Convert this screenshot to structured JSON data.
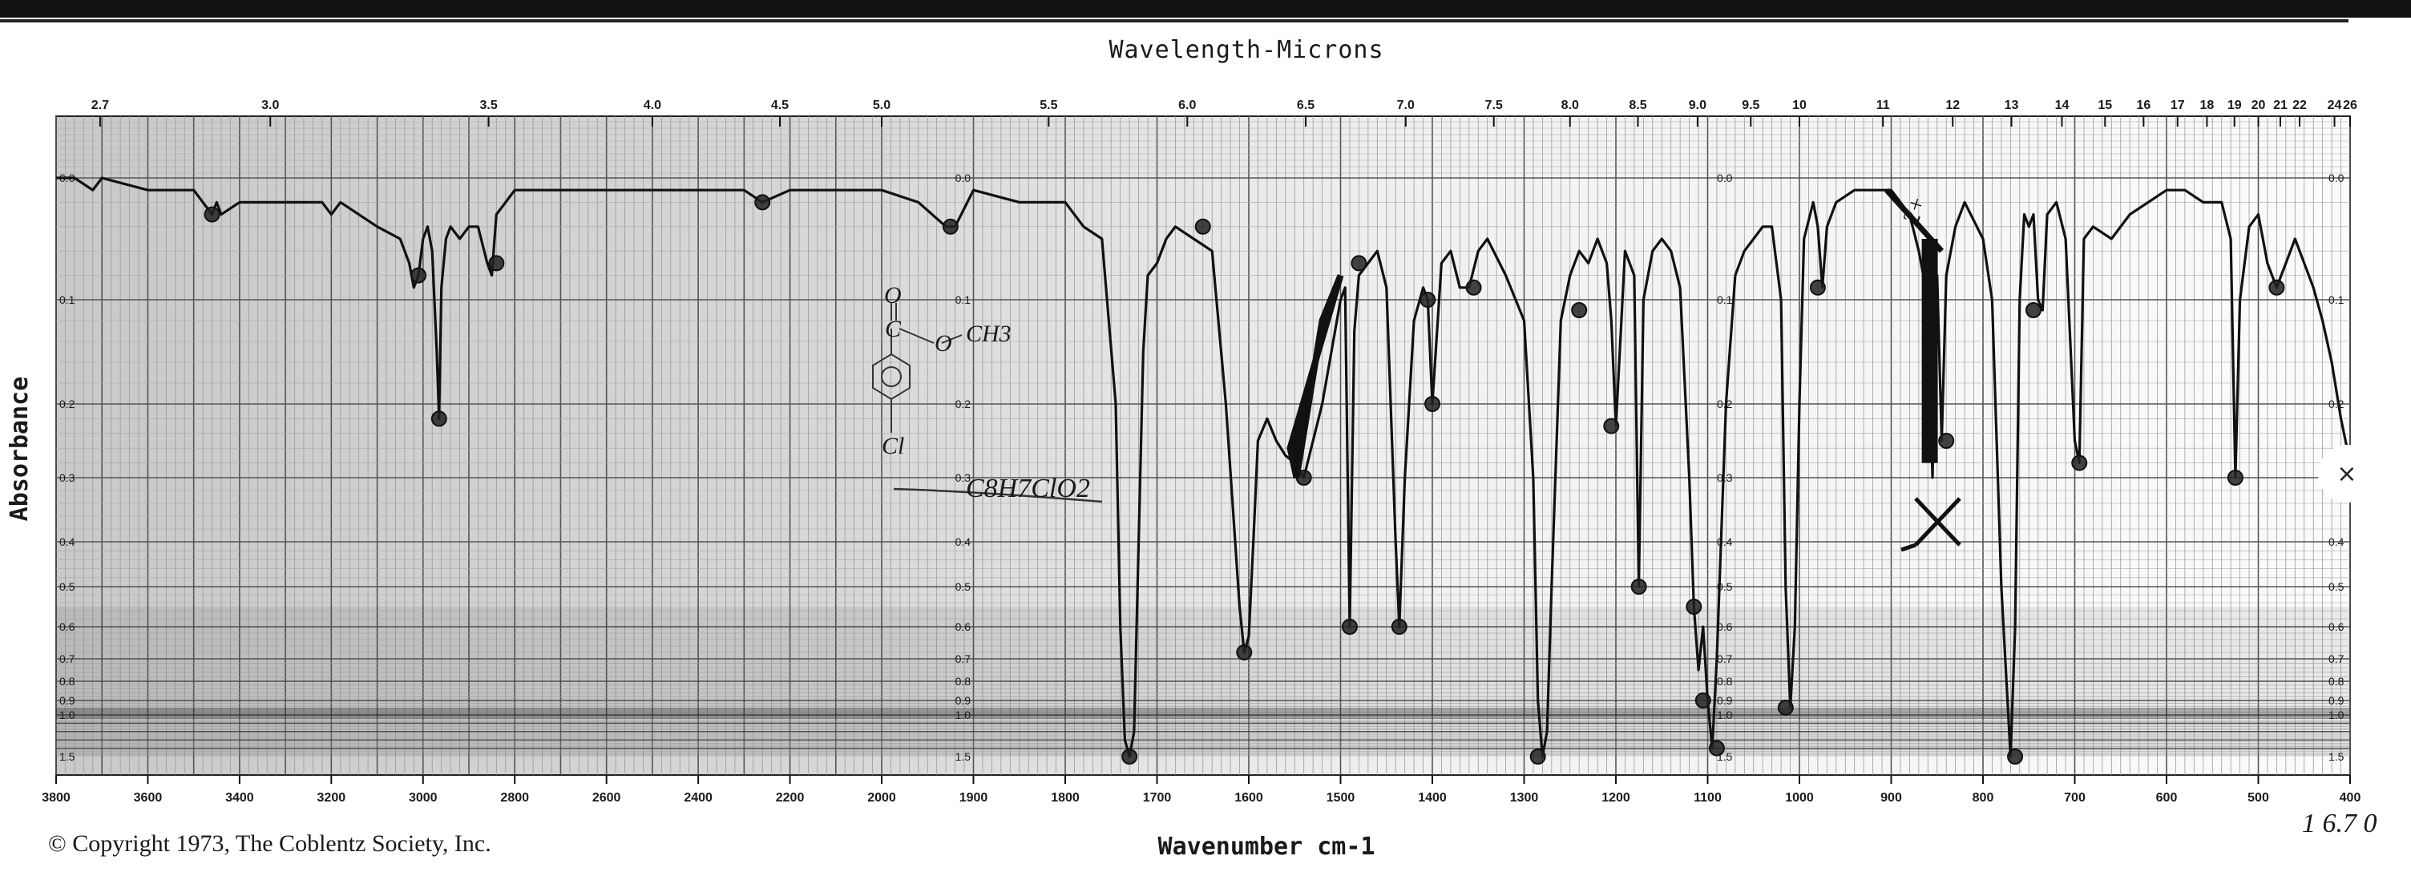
{
  "chart_data": {
    "type": "line",
    "title": "Wavelength-Microns",
    "xlabel": "Wavenumber cm-1",
    "ylabel": "Absorbance",
    "xlim": [
      3800,
      400
    ],
    "ylim": [
      0.0,
      1.5
    ],
    "x_ticks": [
      "3800",
      "3600",
      "3400",
      "3200",
      "3000",
      "2800",
      "2600",
      "2400",
      "2200",
      "2000",
      "1900",
      "1800",
      "1700",
      "1600",
      "1500",
      "1400",
      "1300",
      "1200",
      "1100",
      "1000",
      "900",
      "800",
      "700",
      "600",
      "500",
      "400"
    ],
    "top_ticks": [
      {
        "label": "2.7",
        "wn": 3704
      },
      {
        "label": "3.0",
        "wn": 3333
      },
      {
        "label": "3.5",
        "wn": 2857
      },
      {
        "label": "4.0",
        "wn": 2500
      },
      {
        "label": "4.5",
        "wn": 2222
      },
      {
        "label": "5.0",
        "wn": 2000
      },
      {
        "label": "5.5",
        "wn": 1818
      },
      {
        "label": "6.0",
        "wn": 1667
      },
      {
        "label": "6.5",
        "wn": 1538
      },
      {
        "label": "7.0",
        "wn": 1429
      },
      {
        "label": "7.5",
        "wn": 1333
      },
      {
        "label": "8.0",
        "wn": 1250
      },
      {
        "label": "8.5",
        "wn": 1176
      },
      {
        "label": "9.0",
        "wn": 1111
      },
      {
        "label": "9.5",
        "wn": 1053
      },
      {
        "label": "10",
        "wn": 1000
      },
      {
        "label": "11",
        "wn": 909
      },
      {
        "label": "12",
        "wn": 833
      },
      {
        "label": "13",
        "wn": 769
      },
      {
        "label": "14",
        "wn": 714
      },
      {
        "label": "15",
        "wn": 667
      },
      {
        "label": "16",
        "wn": 625
      },
      {
        "label": "17",
        "wn": 588
      },
      {
        "label": "18",
        "wn": 556
      },
      {
        "label": "19",
        "wn": 526
      },
      {
        "label": "20",
        "wn": 500
      },
      {
        "label": "21",
        "wn": 476
      },
      {
        "label": "22",
        "wn": 455
      },
      {
        "label": "24",
        "wn": 417
      },
      {
        "label": "26",
        "wn": 400
      }
    ],
    "y_ticks": [
      "0.0",
      "0.1",
      "0.2",
      "0.3",
      "0.4",
      "0.5",
      "0.6",
      "0.7",
      "0.8",
      "0.9",
      "1.0",
      "1.5"
    ],
    "series": [
      {
        "x": [
          3800,
          3760,
          3720,
          3700,
          3600,
          3500,
          3460,
          3450,
          3440,
          3400,
          3300,
          3220,
          3200,
          3180,
          3100,
          3050,
          3030,
          3020,
          3010,
          3000,
          2990,
          2980,
          2970,
          2965,
          2960,
          2950,
          2940,
          2920,
          2900,
          2880,
          2860,
          2850,
          2840,
          2820,
          2800,
          2600,
          2400,
          2300,
          2260,
          2200,
          2100,
          2000,
          1960,
          1930,
          1920,
          1900,
          1850,
          1800,
          1780,
          1760,
          1745,
          1740,
          1735,
          1730,
          1725,
          1720,
          1715,
          1710,
          1700,
          1690,
          1680,
          1660,
          1640,
          1625,
          1610,
          1605,
          1600,
          1595,
          1590,
          1580,
          1570,
          1560,
          1550,
          1540,
          1520,
          1500,
          1495,
          1490,
          1485,
          1480,
          1470,
          1460,
          1450,
          1440,
          1436,
          1430,
          1420,
          1410,
          1405,
          1400,
          1390,
          1380,
          1370,
          1360,
          1350,
          1340,
          1320,
          1300,
          1290,
          1285,
          1280,
          1275,
          1270,
          1260,
          1250,
          1240,
          1230,
          1220,
          1210,
          1205,
          1200,
          1190,
          1180,
          1175,
          1170,
          1160,
          1150,
          1140,
          1130,
          1120,
          1115,
          1110,
          1105,
          1100,
          1095,
          1090,
          1080,
          1070,
          1060,
          1050,
          1040,
          1030,
          1020,
          1015,
          1010,
          1005,
          1000,
          995,
          985,
          980,
          975,
          970,
          960,
          940,
          920,
          900,
          880,
          870,
          860,
          855,
          850,
          845,
          840,
          830,
          820,
          800,
          790,
          780,
          770,
          765,
          760,
          755,
          750,
          745,
          740,
          735,
          730,
          720,
          710,
          700,
          695,
          690,
          680,
          660,
          640,
          620,
          600,
          580,
          560,
          540,
          530,
          525,
          520,
          510,
          500,
          490,
          480,
          475,
          470,
          460,
          450,
          440,
          430,
          420,
          410,
          400
        ],
        "y": [
          0.0,
          0.0,
          0.01,
          0.0,
          0.01,
          0.01,
          0.03,
          0.02,
          0.03,
          0.02,
          0.02,
          0.02,
          0.03,
          0.02,
          0.04,
          0.05,
          0.07,
          0.09,
          0.08,
          0.05,
          0.04,
          0.06,
          0.15,
          0.22,
          0.09,
          0.05,
          0.04,
          0.05,
          0.04,
          0.04,
          0.07,
          0.08,
          0.03,
          0.02,
          0.01,
          0.01,
          0.01,
          0.01,
          0.02,
          0.01,
          0.01,
          0.01,
          0.02,
          0.04,
          0.04,
          0.01,
          0.02,
          0.02,
          0.04,
          0.05,
          0.2,
          0.6,
          1.3,
          1.5,
          1.2,
          0.4,
          0.15,
          0.08,
          0.07,
          0.05,
          0.04,
          0.05,
          0.06,
          0.2,
          0.55,
          0.68,
          0.63,
          0.4,
          0.25,
          0.22,
          0.25,
          0.27,
          0.28,
          0.3,
          0.2,
          0.1,
          0.09,
          0.6,
          0.13,
          0.08,
          0.07,
          0.06,
          0.09,
          0.4,
          0.6,
          0.3,
          0.12,
          0.09,
          0.1,
          0.2,
          0.07,
          0.06,
          0.09,
          0.09,
          0.06,
          0.05,
          0.08,
          0.12,
          0.3,
          0.9,
          1.5,
          1.2,
          0.5,
          0.12,
          0.08,
          0.06,
          0.07,
          0.05,
          0.07,
          0.12,
          0.23,
          0.06,
          0.08,
          0.5,
          0.1,
          0.06,
          0.05,
          0.06,
          0.09,
          0.3,
          0.55,
          0.75,
          0.6,
          0.9,
          1.4,
          0.7,
          0.2,
          0.08,
          0.06,
          0.05,
          0.04,
          0.04,
          0.1,
          0.5,
          0.95,
          0.6,
          0.2,
          0.05,
          0.02,
          0.04,
          0.09,
          0.04,
          0.02,
          0.01,
          0.01,
          0.01,
          0.03,
          0.06,
          0.1,
          0.3,
          0.08,
          0.25,
          0.08,
          0.04,
          0.02,
          0.05,
          0.1,
          0.5,
          1.5,
          0.6,
          0.1,
          0.03,
          0.04,
          0.03,
          0.1,
          0.11,
          0.03,
          0.02,
          0.05,
          0.25,
          0.28,
          0.05,
          0.04,
          0.05,
          0.03,
          0.02,
          0.01,
          0.01,
          0.02,
          0.02,
          0.05,
          0.3,
          0.1,
          0.04,
          0.03,
          0.07,
          0.09,
          0.08,
          0.07,
          0.05,
          0.07,
          0.09,
          0.12,
          0.16,
          0.22,
          0.28
        ]
      }
    ],
    "grid": true
  },
  "structure": {
    "formula": "C8H7ClO2",
    "methyl": "CH3",
    "oxygen_top": "O",
    "oxygen_ester": "O",
    "carbon": "C",
    "chlorine": "Cl"
  },
  "annotations": {
    "copyright": "© Copyright 1973, The Coblentz Society, Inc.",
    "page_note": "1 6.7 0",
    "band_note": "2+"
  },
  "ui": {
    "close_label": "×"
  }
}
